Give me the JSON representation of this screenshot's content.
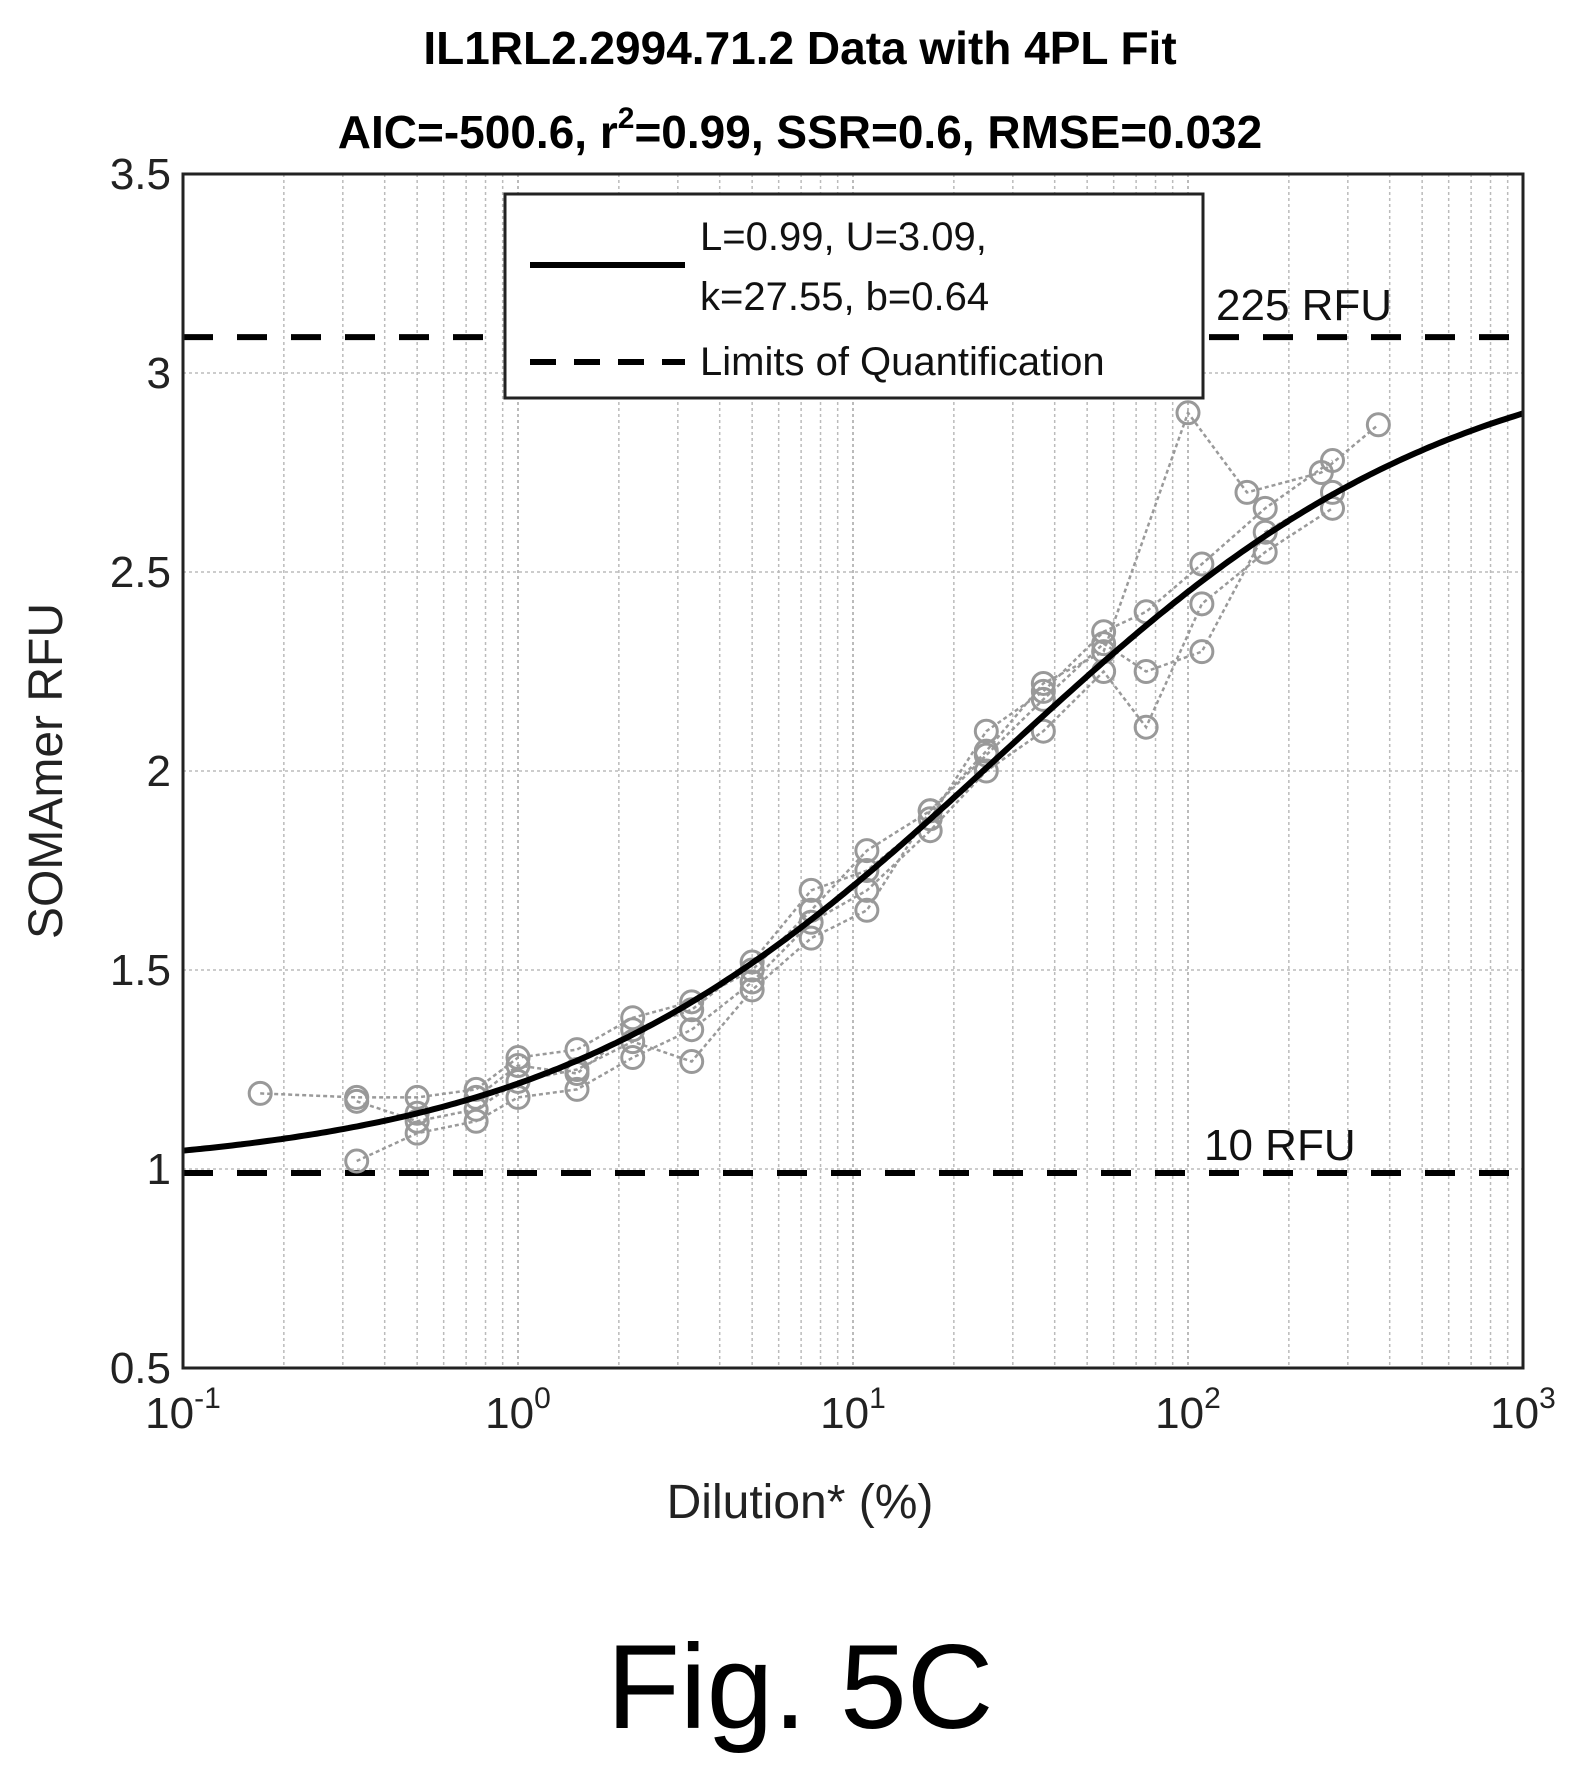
{
  "chart_data": {
    "type": "scatter",
    "title_line1": "IL1RL2.2994.71.2 Data with 4PL Fit",
    "title_line2": {
      "aic": "AIC=-500.6, r",
      "sup": "2",
      "rest": "=0.99, SSR=0.6, RMSE=0.032"
    },
    "xlabel": "Dilution* (%)",
    "ylabel": "SOMAmer RFU",
    "x_scale": "log",
    "xlim": [
      0.1,
      1000
    ],
    "ylim": [
      0.5,
      3.5
    ],
    "grid": true,
    "x_ticks": [
      {
        "base": "10",
        "exp": "-1"
      },
      {
        "base": "10",
        "exp": "0"
      },
      {
        "base": "10",
        "exp": "1"
      },
      {
        "base": "10",
        "exp": "2"
      },
      {
        "base": "10",
        "exp": "3"
      }
    ],
    "y_ticks": [
      "0.5",
      "1",
      "1.5",
      "2",
      "2.5",
      "3",
      "3.5"
    ],
    "fit": {
      "L": 0.99,
      "U": 3.09,
      "k": 27.55,
      "b": 0.64
    },
    "limits_of_quantification": {
      "lower": 0.99,
      "upper": 3.09
    },
    "annotations": {
      "upper": "225 RFU",
      "lower": "10 RFU"
    },
    "legend": {
      "location": "top",
      "fit_line1": "L=0.99, U=3.09,",
      "fit_line2": "k=27.55, b=0.64",
      "lod": "Limits of Quantification"
    },
    "series": [
      {
        "x": [
          0.17,
          0.33,
          0.5,
          0.75,
          1.0,
          1.5,
          2.2,
          3.3,
          5.0,
          7.5,
          11,
          17,
          25,
          37,
          56,
          100,
          150,
          250,
          370
        ],
        "y": [
          1.19,
          1.18,
          1.18,
          1.2,
          1.28,
          1.3,
          1.38,
          1.42,
          1.5,
          1.65,
          1.8,
          1.9,
          2.05,
          2.22,
          2.3,
          2.9,
          2.7,
          2.75,
          2.87
        ]
      },
      {
        "x": [
          0.33,
          0.5,
          0.75,
          1.0,
          1.5,
          2.2,
          3.3,
          5.0,
          7.5,
          11,
          17,
          25,
          37,
          56,
          75,
          110,
          170,
          270
        ],
        "y": [
          1.02,
          1.09,
          1.12,
          1.18,
          1.2,
          1.28,
          1.35,
          1.47,
          1.62,
          1.7,
          1.85,
          2.0,
          2.1,
          2.25,
          2.11,
          2.42,
          2.55,
          2.66
        ]
      },
      {
        "x": [
          0.33,
          0.5,
          0.75,
          1.0,
          1.5,
          2.2,
          3.3,
          5.0,
          7.5,
          11,
          17,
          25,
          37,
          56,
          75,
          110,
          170,
          270
        ],
        "y": [
          1.17,
          1.12,
          1.15,
          1.22,
          1.25,
          1.32,
          1.27,
          1.45,
          1.58,
          1.65,
          1.9,
          2.04,
          2.18,
          2.32,
          2.25,
          2.3,
          2.6,
          2.7
        ]
      },
      {
        "x": [
          0.5,
          0.75,
          1.0,
          1.5,
          2.2,
          3.3,
          5.0,
          7.5,
          11,
          17,
          25,
          37,
          56,
          75,
          110,
          170,
          270
        ],
        "y": [
          1.14,
          1.18,
          1.26,
          1.24,
          1.35,
          1.4,
          1.52,
          1.7,
          1.75,
          1.88,
          2.1,
          2.2,
          2.35,
          2.4,
          2.52,
          2.66,
          2.78
        ]
      }
    ]
  },
  "figure_label": "Fig. 5C"
}
